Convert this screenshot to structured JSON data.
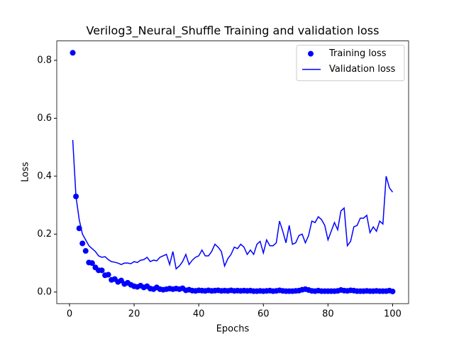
{
  "chart_data": {
    "type": "line",
    "title": "Verilog3_Neural_Shuffle Training and validation loss",
    "xlabel": "Epochs",
    "ylabel": "Loss",
    "x": [
      1,
      2,
      3,
      4,
      5,
      6,
      7,
      8,
      9,
      10,
      11,
      12,
      13,
      14,
      15,
      16,
      17,
      18,
      19,
      20,
      21,
      22,
      23,
      24,
      25,
      26,
      27,
      28,
      29,
      30,
      31,
      32,
      33,
      34,
      35,
      36,
      37,
      38,
      39,
      40,
      41,
      42,
      43,
      44,
      45,
      46,
      47,
      48,
      49,
      50,
      51,
      52,
      53,
      54,
      55,
      56,
      57,
      58,
      59,
      60,
      61,
      62,
      63,
      64,
      65,
      66,
      67,
      68,
      69,
      70,
      71,
      72,
      73,
      74,
      75,
      76,
      77,
      78,
      79,
      80,
      81,
      82,
      83,
      84,
      85,
      86,
      87,
      88,
      89,
      90,
      91,
      92,
      93,
      94,
      95,
      96,
      97,
      98,
      99,
      100
    ],
    "series": [
      {
        "name": "Training loss",
        "color": "#0000ff",
        "style": "marker",
        "values": [
          0.826,
          0.33,
          0.22,
          0.168,
          0.142,
          0.102,
          0.1,
          0.085,
          0.075,
          0.075,
          0.058,
          0.06,
          0.042,
          0.045,
          0.035,
          0.04,
          0.028,
          0.032,
          0.025,
          0.02,
          0.018,
          0.022,
          0.016,
          0.02,
          0.012,
          0.01,
          0.016,
          0.01,
          0.008,
          0.01,
          0.012,
          0.01,
          0.012,
          0.01,
          0.013,
          0.006,
          0.008,
          0.005,
          0.004,
          0.006,
          0.005,
          0.004,
          0.006,
          0.004,
          0.005,
          0.006,
          0.004,
          0.005,
          0.004,
          0.006,
          0.004,
          0.005,
          0.004,
          0.005,
          0.004,
          0.005,
          0.003,
          0.003,
          0.004,
          0.003,
          0.004,
          0.005,
          0.003,
          0.004,
          0.006,
          0.004,
          0.003,
          0.003,
          0.003,
          0.004,
          0.005,
          0.008,
          0.01,
          0.007,
          0.004,
          0.003,
          0.005,
          0.003,
          0.003,
          0.003,
          0.003,
          0.003,
          0.004,
          0.007,
          0.005,
          0.004,
          0.006,
          0.005,
          0.003,
          0.003,
          0.003,
          0.004,
          0.003,
          0.003,
          0.004,
          0.003,
          0.003,
          0.003,
          0.005,
          0.002
        ]
      },
      {
        "name": "Validation loss",
        "color": "#0000ff",
        "style": "line",
        "values": [
          0.525,
          0.33,
          0.25,
          0.2,
          0.18,
          0.16,
          0.15,
          0.14,
          0.125,
          0.12,
          0.122,
          0.112,
          0.105,
          0.103,
          0.1,
          0.095,
          0.1,
          0.1,
          0.098,
          0.105,
          0.102,
          0.11,
          0.112,
          0.12,
          0.105,
          0.11,
          0.108,
          0.12,
          0.125,
          0.13,
          0.095,
          0.14,
          0.08,
          0.09,
          0.105,
          0.13,
          0.095,
          0.11,
          0.12,
          0.125,
          0.145,
          0.125,
          0.125,
          0.14,
          0.165,
          0.155,
          0.14,
          0.09,
          0.115,
          0.13,
          0.155,
          0.15,
          0.165,
          0.155,
          0.13,
          0.145,
          0.13,
          0.165,
          0.175,
          0.135,
          0.18,
          0.16,
          0.16,
          0.17,
          0.245,
          0.21,
          0.17,
          0.23,
          0.165,
          0.17,
          0.195,
          0.2,
          0.17,
          0.195,
          0.245,
          0.24,
          0.26,
          0.25,
          0.23,
          0.18,
          0.21,
          0.24,
          0.215,
          0.28,
          0.29,
          0.16,
          0.175,
          0.225,
          0.23,
          0.255,
          0.255,
          0.265,
          0.205,
          0.225,
          0.21,
          0.245,
          0.235,
          0.4,
          0.36,
          0.345
        ]
      }
    ],
    "xlim": [
      -3.95,
      104.95
    ],
    "xticks": [
      0,
      20,
      40,
      60,
      80,
      100
    ],
    "ylim": [
      -0.04,
      0.867
    ],
    "yticks": [
      {
        "value": 0,
        "label": "0.0"
      },
      0.2,
      0.4,
      0.6,
      0.8
    ],
    "legend": "upper right",
    "grid": false
  }
}
